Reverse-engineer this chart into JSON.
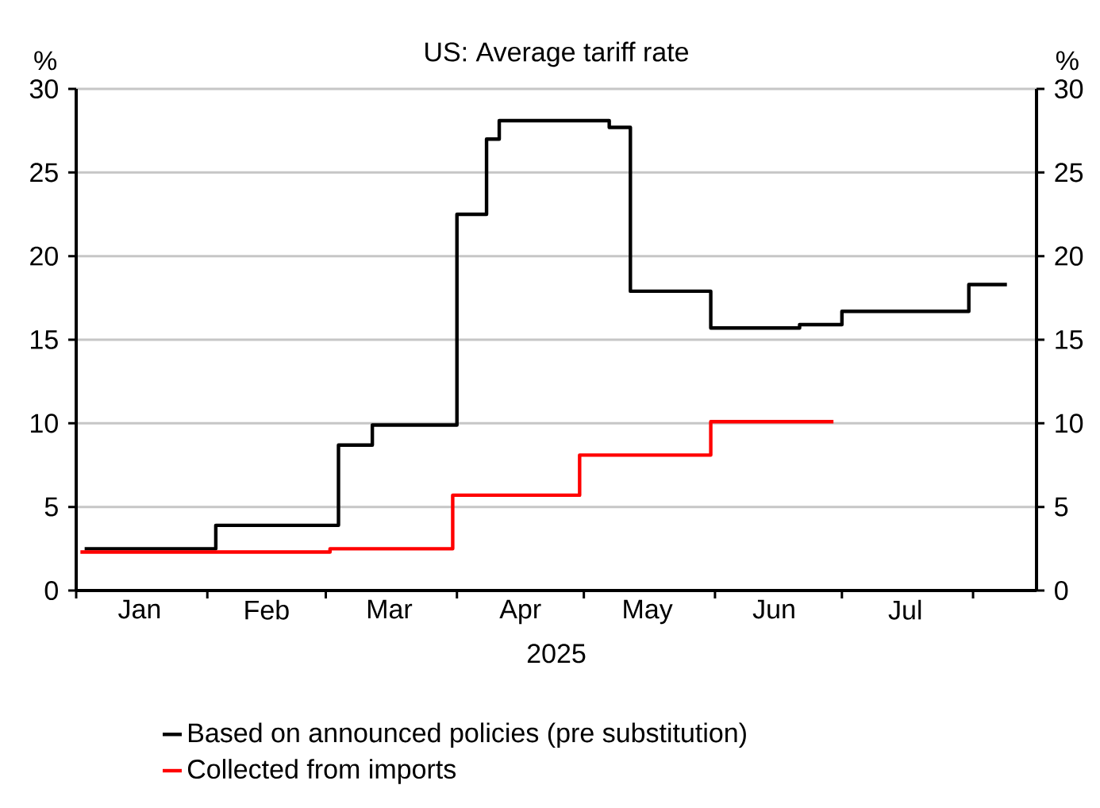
{
  "chart_data": {
    "type": "step",
    "title": "US: Average tariff rate",
    "xlabel": "2025",
    "ylabel": "%",
    "y2label": "%",
    "xlim": [
      "2025-01-01",
      "2025-08-16"
    ],
    "xticks": [
      {
        "value": "2025-01-01",
        "label": null
      },
      {
        "value": "2025-01-16",
        "label": "Jan"
      },
      {
        "value": "2025-02-01",
        "label": null
      },
      {
        "value": "2025-02-15",
        "label": "Feb"
      },
      {
        "value": "2025-03-01",
        "label": null
      },
      {
        "value": "2025-03-16",
        "label": "Mar"
      },
      {
        "value": "2025-04-01",
        "label": null
      },
      {
        "value": "2025-04-16",
        "label": "Apr"
      },
      {
        "value": "2025-05-01",
        "label": null
      },
      {
        "value": "2025-05-16",
        "label": "May"
      },
      {
        "value": "2025-06-01",
        "label": null
      },
      {
        "value": "2025-06-15",
        "label": "Jun"
      },
      {
        "value": "2025-07-01",
        "label": null
      },
      {
        "value": "2025-07-16",
        "label": "Jul"
      },
      {
        "value": "2025-08-01",
        "label": null
      }
    ],
    "ylim": [
      0,
      30
    ],
    "yticks": [
      0,
      5,
      10,
      15,
      20,
      25,
      30
    ],
    "y2lim": [
      0,
      30
    ],
    "y2ticks": [
      0,
      5,
      10,
      15,
      20,
      25,
      30
    ],
    "grid": "y",
    "legend": "bottom",
    "marker": "none",
    "line_style": "solid",
    "series": [
      {
        "name": "Based on announced policies (pre substitution)",
        "color": "#000000",
        "x": [
          "2025-01-03",
          "2025-02-03",
          "2025-03-04",
          "2025-03-12",
          "2025-04-01",
          "2025-04-08",
          "2025-04-11",
          "2025-05-07",
          "2025-05-12",
          "2025-05-31",
          "2025-06-21",
          "2025-07-01",
          "2025-07-31",
          "2025-08-09"
        ],
        "values": [
          2.5,
          3.9,
          8.7,
          9.9,
          22.5,
          27,
          28.1,
          27.7,
          17.9,
          15.7,
          15.9,
          16.7,
          18.3,
          18.3
        ]
      },
      {
        "name": "Collected from imports",
        "color": "#ff0000",
        "x": [
          "2025-01-02",
          "2025-03-02",
          "2025-03-31",
          "2025-04-30",
          "2025-05-31",
          "2025-06-29"
        ],
        "values": [
          2.3,
          2.5,
          5.7,
          8.1,
          10.1,
          10.1
        ]
      }
    ]
  }
}
